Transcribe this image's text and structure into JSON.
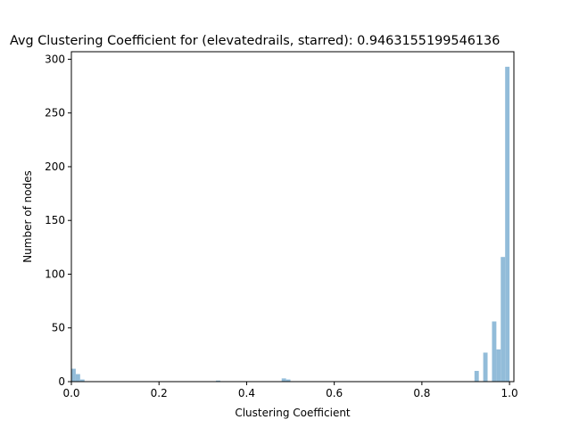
{
  "chart_data": {
    "type": "bar",
    "title": "Avg Clustering Coefficient for (elevatedrails, starred): 0.9463155199546136",
    "xlabel": "Clustering Coefficient",
    "ylabel": "Number of nodes",
    "xlim": [
      0,
      1.01
    ],
    "ylim": [
      0,
      307
    ],
    "xticks": [
      0.0,
      0.2,
      0.4,
      0.6,
      0.8,
      1.0
    ],
    "xtick_labels": [
      "0.0",
      "0.2",
      "0.4",
      "0.6",
      "0.8",
      "1.0"
    ],
    "yticks": [
      0,
      50,
      100,
      150,
      200,
      250,
      300
    ],
    "ytick_labels": [
      "0",
      "50",
      "100",
      "150",
      "200",
      "250",
      "300"
    ],
    "grid": false,
    "legend": "none",
    "bar_color": "#92bcd9",
    "bins": {
      "x0": [
        0.0,
        0.01,
        0.02,
        0.33,
        0.48,
        0.49,
        0.92,
        0.94,
        0.96,
        0.97,
        0.98,
        0.99
      ],
      "width": 0.01,
      "counts": [
        12,
        7,
        2,
        1,
        3,
        2,
        10,
        27,
        56,
        30,
        116,
        293
      ]
    }
  }
}
